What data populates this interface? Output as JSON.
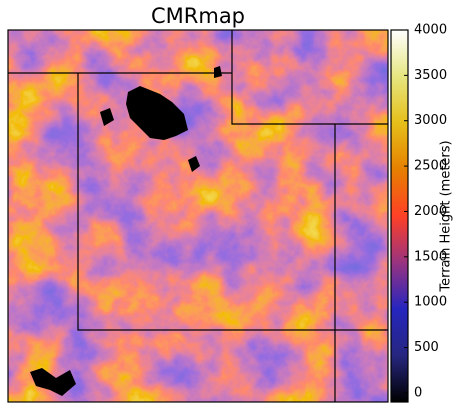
{
  "title": "CMRmap",
  "colorbar": {
    "label": "Terrain Height (meters)",
    "lim": [
      -100,
      4000
    ],
    "ticks": [
      0,
      500,
      1000,
      1500,
      2000,
      2500,
      3000,
      3500,
      4000
    ],
    "colormap": [
      "#000000",
      "#262680",
      "#2626bf",
      "#993380",
      "#ff4026",
      "#e68000",
      "#e6bf1a",
      "#e6e680",
      "#ffffff"
    ]
  }
}
